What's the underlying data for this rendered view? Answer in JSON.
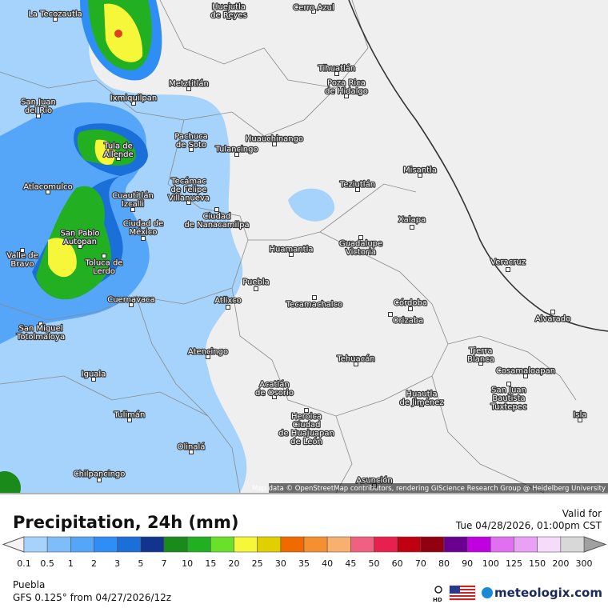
{
  "map": {
    "attribution": "Map data © OpenStreetMap contributors, rendering GIScience Research Group @ Heidelberg University",
    "places": [
      {
        "lines": [
          "La Tecozautla"
        ]
      },
      {
        "lines": [
          "Huejutla",
          "de Reyes"
        ]
      },
      {
        "lines": [
          "Cerro Azul"
        ]
      },
      {
        "lines": [
          "Tihuatlán"
        ]
      },
      {
        "lines": [
          "Poza Rica",
          "de Hidalgo"
        ]
      },
      {
        "lines": [
          "San Juan",
          "del Río"
        ]
      },
      {
        "lines": [
          "Ixmiquilpan"
        ]
      },
      {
        "lines": [
          "Metztitlán"
        ]
      },
      {
        "lines": [
          "Tula de",
          "Allende"
        ]
      },
      {
        "lines": [
          "Pachuca",
          "de Soto"
        ]
      },
      {
        "lines": [
          "Huauchinango"
        ]
      },
      {
        "lines": [
          "Tulancingo"
        ]
      },
      {
        "lines": [
          "Misantla"
        ]
      },
      {
        "lines": [
          "Teziutlán"
        ]
      },
      {
        "lines": [
          "Atlacomulco"
        ]
      },
      {
        "lines": [
          "Cuautitlán",
          "Izcalli"
        ]
      },
      {
        "lines": [
          "Tecámac",
          "de Felipe",
          "Villanueva"
        ]
      },
      {
        "lines": [
          "Xalapa"
        ]
      },
      {
        "lines": [
          "Ciudad de",
          "México"
        ]
      },
      {
        "lines": [
          "Ciudad",
          "de Nanacamilpa"
        ]
      },
      {
        "lines": [
          "San Pablo",
          "Autopan"
        ]
      },
      {
        "lines": [
          "Huamantla"
        ]
      },
      {
        "lines": [
          "Guadalupe",
          "Victoria"
        ]
      },
      {
        "lines": [
          "Valle de",
          "Bravo"
        ]
      },
      {
        "lines": [
          "Toluca de",
          "Lerdo"
        ]
      },
      {
        "lines": [
          "Veracruz"
        ]
      },
      {
        "lines": [
          "Puebla"
        ]
      },
      {
        "lines": [
          "Cuernavaca"
        ]
      },
      {
        "lines": [
          "Atlixco"
        ]
      },
      {
        "lines": [
          "Tecamachalco"
        ]
      },
      {
        "lines": [
          "Córdoba"
        ]
      },
      {
        "lines": [
          "Orizaba"
        ]
      },
      {
        "lines": [
          "Alvarado"
        ]
      },
      {
        "lines": [
          "San Miguel",
          "Totolmaloya"
        ]
      },
      {
        "lines": [
          "Atencingo"
        ]
      },
      {
        "lines": [
          "Tierra",
          "Blanca"
        ]
      },
      {
        "lines": [
          "Tehuacán"
        ]
      },
      {
        "lines": [
          "Cosamaloapan"
        ]
      },
      {
        "lines": [
          "Iguala"
        ]
      },
      {
        "lines": [
          "Acatlán",
          "de Osorio"
        ]
      },
      {
        "lines": [
          "Huautla",
          "de Jiménez"
        ]
      },
      {
        "lines": [
          "San Juan",
          "Bautista",
          "Tuxtepec"
        ]
      },
      {
        "lines": [
          "Isla"
        ]
      },
      {
        "lines": [
          "Tulimán"
        ]
      },
      {
        "lines": [
          "Heroica",
          "Ciudad",
          "de Huajuapan",
          "de León"
        ]
      },
      {
        "lines": [
          "Olinalá"
        ]
      },
      {
        "lines": [
          "Chilpancingo"
        ]
      },
      {
        "lines": [
          "Asunción"
        ]
      }
    ]
  },
  "footer": {
    "title": "Precipitation, 24h (mm)",
    "valid_label": "Valid for",
    "valid_time": "Tue 04/28/2026, 01:00pm CST",
    "location": "Puebla",
    "model_run": "GFS 0.125° from  04/27/2026/12z",
    "hd": "HD",
    "brand": "meteologix.com"
  },
  "legend": {
    "labels": [
      0.1,
      0.5,
      1,
      2,
      3,
      5,
      7,
      10,
      15,
      20,
      25,
      30,
      35,
      40,
      45,
      50,
      60,
      70,
      80,
      90,
      100,
      125,
      150,
      200,
      300
    ],
    "colors": [
      "#a5d3fb",
      "#7fbdfa",
      "#55a6f8",
      "#2f8ef5",
      "#1a6fd8",
      "#12348e",
      "#1a8a1a",
      "#22b022",
      "#6ae02a",
      "#f7f73a",
      "#e0d000",
      "#f06a00",
      "#f59030",
      "#f8b070",
      "#f06080",
      "#e82050",
      "#c00010",
      "#900010",
      "#6a0090",
      "#c000e0",
      "#e070f0",
      "#eaa0f5",
      "#f6dcfb",
      "#d8d8d8"
    ]
  }
}
